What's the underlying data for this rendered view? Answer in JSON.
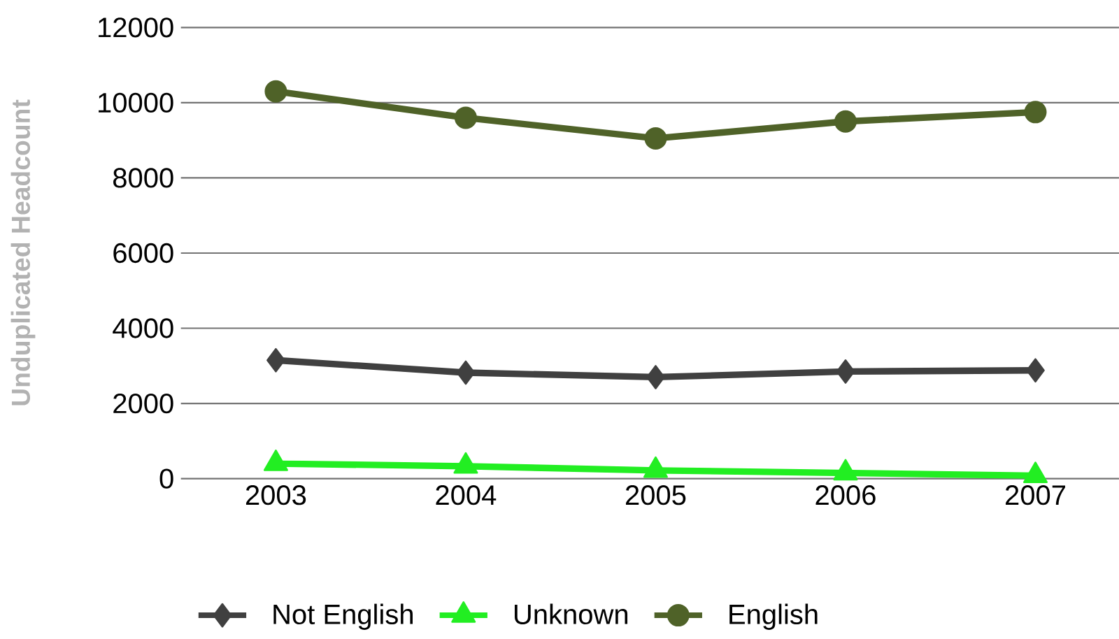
{
  "chart_data": {
    "type": "line",
    "ylabel": "Unduplicated Headcount",
    "categories": [
      "2003",
      "2004",
      "2005",
      "2006",
      "2007"
    ],
    "series": [
      {
        "name": "Not English",
        "color": "#404040",
        "marker": "diamond",
        "values": [
          3150,
          2820,
          2700,
          2850,
          2880
        ]
      },
      {
        "name": "Unknown",
        "color": "#22ee22",
        "marker": "triangle",
        "values": [
          400,
          330,
          220,
          150,
          80
        ]
      },
      {
        "name": "English",
        "color": "#4f6228",
        "marker": "circle",
        "values": [
          10300,
          9600,
          9050,
          9500,
          9750
        ]
      }
    ],
    "ylim": [
      0,
      12000
    ],
    "yticks": [
      0,
      2000,
      4000,
      6000,
      8000,
      10000,
      12000
    ],
    "grid": "y",
    "legend": "bottom"
  }
}
